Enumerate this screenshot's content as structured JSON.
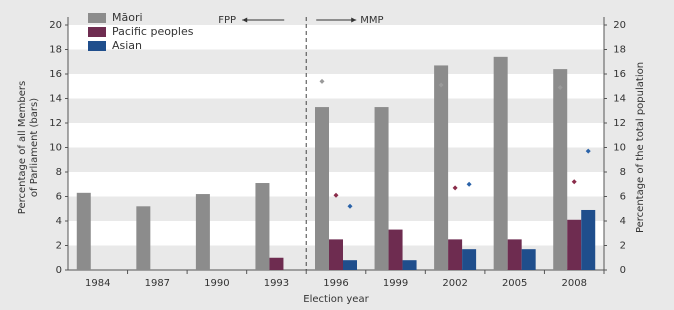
{
  "chart_data": {
    "type": "bar",
    "categories": [
      "1984",
      "1987",
      "1990",
      "1993",
      "1996",
      "1999",
      "2002",
      "2005",
      "2008"
    ],
    "series": [
      {
        "name": "Māori",
        "color": "#8c8c8c",
        "values": [
          6.3,
          5.2,
          6.2,
          7.1,
          13.3,
          13.3,
          16.7,
          17.4,
          16.4
        ]
      },
      {
        "name": "Pacific peoples",
        "color": "#6e2c50",
        "values": [
          0,
          0,
          0,
          1.0,
          2.5,
          3.3,
          2.5,
          2.5,
          4.1
        ]
      },
      {
        "name": "Asian",
        "color": "#1f4e8c",
        "values": [
          0,
          0,
          0,
          0,
          0.8,
          0.8,
          1.7,
          1.7,
          4.9
        ]
      }
    ],
    "population_series": [
      {
        "color": "#9a9a9a",
        "axis": "y2",
        "values": [
          null,
          null,
          null,
          null,
          15.4,
          null,
          15.1,
          null,
          14.9
        ]
      },
      {
        "color": "#8a2c4a",
        "axis": "y2",
        "values": [
          null,
          null,
          null,
          null,
          6.1,
          null,
          6.7,
          null,
          7.2
        ]
      },
      {
        "color": "#2a62a8",
        "axis": "y2",
        "values": [
          null,
          null,
          null,
          null,
          5.2,
          null,
          7.0,
          null,
          9.7
        ]
      }
    ],
    "ylabel": [
      "Percentage of all Members",
      "of Parliament (bars)"
    ],
    "y2label": "Percentage of the total population",
    "xlabel": "Election year",
    "annotations": [
      "FPP",
      "MMP"
    ],
    "ylim": [
      0,
      20
    ],
    "yticks": [
      0,
      2,
      4,
      6,
      8,
      10,
      12,
      14,
      16,
      18,
      20
    ],
    "y2lim": [
      0,
      20
    ],
    "y2ticks": [
      0,
      2,
      4,
      6,
      8,
      10,
      12,
      14,
      16,
      18,
      20
    ],
    "grid": true,
    "legend": "top-left"
  }
}
